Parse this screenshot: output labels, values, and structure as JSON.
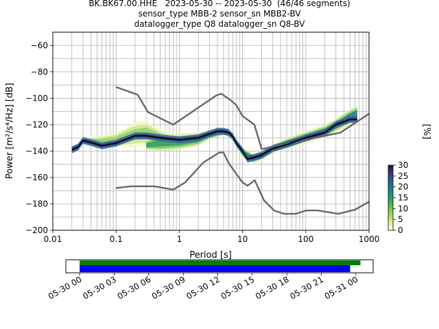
{
  "title": {
    "line1": "BK.BK67.00.HHE   2023-05-30 -- 2023-05-30  (46/46 segments)",
    "line2": "sensor_type MBB-2 sensor_sn MBB2-BV",
    "line3": "datalogger_type Q8 datalogger_sn Q8-BV"
  },
  "chart_data": [
    {
      "type": "heatmap",
      "title": "BK.BK67.00.HHE   2023-05-30 -- 2023-05-30  (46/46 segments)",
      "xlabel": "Period [s]",
      "ylabel": "Power [m²/s⁴/Hz] [dB]",
      "xscale": "log",
      "xlim": [
        0.01,
        1000
      ],
      "ylim": [
        -200,
        -50
      ],
      "x_ticks": [
        "0.01",
        "0.1",
        "1",
        "10",
        "100",
        "1000"
      ],
      "y_ticks": [
        "−60",
        "−80",
        "−100",
        "−120",
        "−140",
        "−160",
        "−180",
        "−200"
      ],
      "grid": true,
      "colorbar": {
        "label": "[%]",
        "range": [
          0,
          30
        ],
        "ticks": [
          "0",
          "5",
          "10",
          "15",
          "20",
          "25",
          "30"
        ],
        "colormap": "pqlx"
      },
      "series": [
        {
          "name": "",
          "color": "#666666",
          "role": "high noise model",
          "x": [
            0.1,
            0.22,
            0.32,
            0.8,
            3.8,
            4.6,
            6.3,
            7.9,
            10,
            15.4,
            20,
            354.8,
            10000
          ],
          "y": [
            -91.5,
            -97.4,
            -110.5,
            -120,
            -98,
            -96.5,
            -101,
            -105,
            -113.5,
            -120,
            -138.5,
            -126,
            -80
          ]
        },
        {
          "name": "",
          "color": "#666666",
          "role": "low noise model",
          "x": [
            0.1,
            0.17,
            0.4,
            0.8,
            1.24,
            2.4,
            4.3,
            5,
            6,
            10,
            12,
            15.6,
            21.9,
            31.6,
            45,
            70,
            101,
            154,
            328,
            600,
            10000
          ],
          "y": [
            -168,
            -166.7,
            -166.7,
            -169.2,
            -163.7,
            -148.6,
            -141.1,
            -141.1,
            -149,
            -163.8,
            -166.2,
            -162.1,
            -177.5,
            -185,
            -187.5,
            -187.5,
            -185,
            -185,
            -187.5,
            -184.4,
            -151.5
          ]
        },
        {
          "name": "",
          "color": "#000000",
          "role": "mode",
          "x": [
            0.02,
            0.025,
            0.03,
            0.04,
            0.06,
            0.1,
            0.2,
            0.3,
            0.5,
            1,
            2,
            3,
            4,
            5,
            6,
            7,
            8,
            10,
            12,
            15,
            20,
            30,
            50,
            100,
            200,
            300,
            500,
            650
          ],
          "y": [
            -139,
            -137,
            -132,
            -133.5,
            -136,
            -134,
            -128.5,
            -128.5,
            -130,
            -131.5,
            -130,
            -127,
            -125,
            -125,
            -126,
            -129,
            -134,
            -140,
            -146,
            -145,
            -143,
            -138,
            -135,
            -130,
            -126,
            -120,
            -116,
            -116
          ]
        }
      ],
      "density_bands": [
        {
          "x": [
            0.03,
            0.06,
            0.1,
            0.2,
            0.3,
            0.5,
            1,
            2
          ],
          "y_low": [
            -134,
            -138,
            -137,
            -137,
            -136,
            -134,
            -133,
            -133
          ],
          "y_high": [
            -130,
            -128,
            -126,
            -118,
            -117,
            -124,
            -129,
            -130
          ]
        },
        {
          "x": [
            0.3,
            0.5,
            1,
            2,
            3,
            5,
            7
          ],
          "y_low": [
            -139,
            -140,
            -139,
            -136,
            -131,
            -128,
            -128
          ],
          "y_high": [
            -132,
            -128,
            -127,
            -126,
            -125,
            -124,
            -126
          ]
        },
        {
          "x": [
            7,
            10,
            15,
            20,
            30,
            50,
            100,
            200,
            300,
            500,
            650
          ],
          "y_low": [
            -132,
            -145,
            -149,
            -147,
            -142,
            -138,
            -134,
            -130,
            -126,
            -120,
            -118
          ],
          "y_high": [
            -129,
            -137,
            -142,
            -140,
            -135,
            -130,
            -125,
            -120,
            -115,
            -108,
            -105
          ]
        }
      ]
    },
    {
      "type": "bar",
      "title": "",
      "role": "data coverage",
      "x_ticks": [
        "05-30 00",
        "05-30 03",
        "05-30 06",
        "05-30 09",
        "05-30 12",
        "05-30 15",
        "05-30 18",
        "05-30 21",
        "05-31 00"
      ],
      "xlim_hours": [
        -1.2,
        25.5
      ],
      "series": [
        {
          "name": "",
          "color": "#008000",
          "start_hour": 0,
          "end_hour": 24.4
        },
        {
          "name": "",
          "color": "#0000ff",
          "start_hour": 0,
          "end_hour": 23.5
        }
      ]
    }
  ]
}
